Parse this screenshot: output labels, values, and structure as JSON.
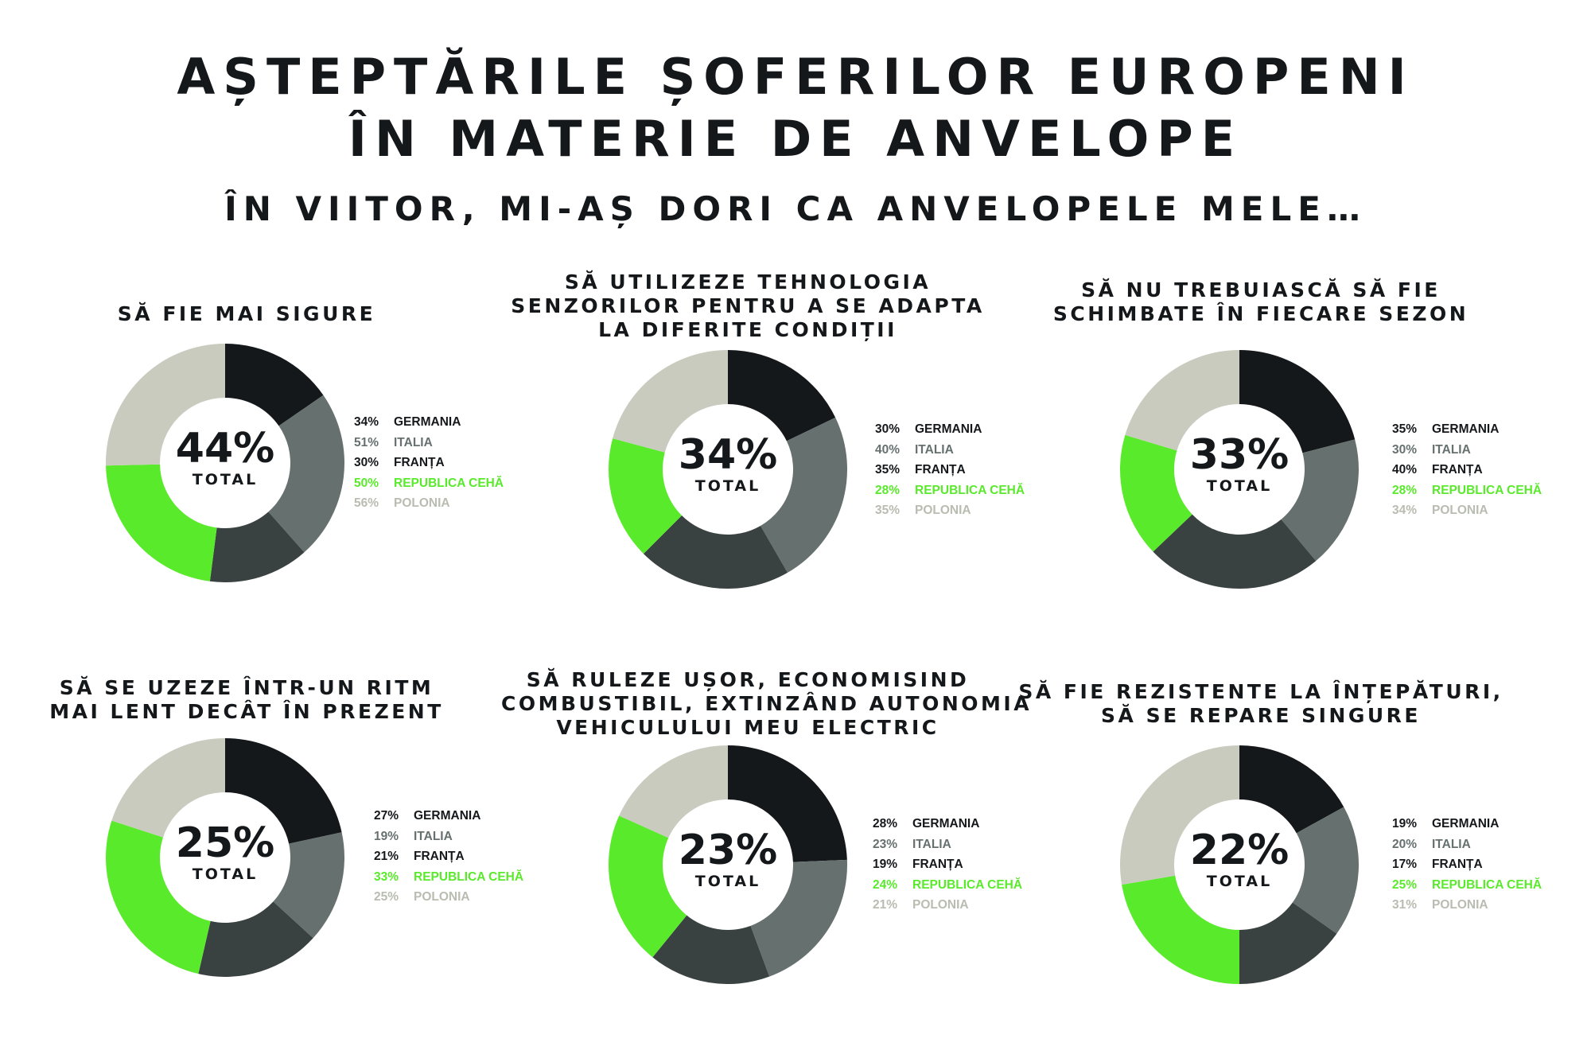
{
  "title_lines": [
    "AȘTEPTĂRILE ȘOFERILOR EUROPENI",
    "ÎN MATERIE DE ANVELOPE"
  ],
  "subtitle": "ÎN VIITOR, MI-AȘ DORI CA ANVELOPELE MELE…",
  "colors": {
    "GERMANIA": "#15181b",
    "ITALIA": "#66716f",
    "FRANȚA": "#3a4241",
    "REPUBLICA CEHĂ": "#5aea2c",
    "POLONIA": "#c8cbbe"
  },
  "chart_data": [
    {
      "type": "pie",
      "title": "SĂ FIE MAI SIGURE",
      "total": "44%",
      "total_label": "TOTAL",
      "categories": [
        "GERMANIA",
        "ITALIA",
        "FRANȚA",
        "REPUBLICA CEHĂ",
        "POLONIA"
      ],
      "values": [
        34,
        51,
        30,
        50,
        56
      ],
      "value_labels": [
        "34%",
        "51%",
        "30%",
        "50%",
        "56%"
      ]
    },
    {
      "type": "pie",
      "title": "SĂ UTILIZEZE TEHNOLOGIA SENZORILOR PENTRU A SE ADAPTA LA DIFERITE CONDIȚII",
      "total": "34%",
      "total_label": "TOTAL",
      "categories": [
        "GERMANIA",
        "ITALIA",
        "FRANȚA",
        "REPUBLICA CEHĂ",
        "POLONIA"
      ],
      "values": [
        30,
        40,
        35,
        28,
        35
      ],
      "value_labels": [
        "30%",
        "40%",
        "35%",
        "28%",
        "35%"
      ]
    },
    {
      "type": "pie",
      "title": "SĂ NU TREBUIASCĂ SĂ FIE SCHIMBATE ÎN FIECARE SEZON",
      "total": "33%",
      "total_label": "TOTAL",
      "categories": [
        "GERMANIA",
        "ITALIA",
        "FRANȚA",
        "REPUBLICA CEHĂ",
        "POLONIA"
      ],
      "values": [
        35,
        30,
        40,
        28,
        34
      ],
      "value_labels": [
        "35%",
        "30%",
        "40%",
        "28%",
        "34%"
      ]
    },
    {
      "type": "pie",
      "title": "SĂ SE UZEZE ÎNTR-UN RITM MAI LENT DECÂT ÎN PREZENT",
      "total": "25%",
      "total_label": "TOTAL",
      "categories": [
        "GERMANIA",
        "ITALIA",
        "FRANȚA",
        "REPUBLICA CEHĂ",
        "POLONIA"
      ],
      "values": [
        27,
        19,
        21,
        33,
        25
      ],
      "value_labels": [
        "27%",
        "19%",
        "21%",
        "33%",
        "25%"
      ]
    },
    {
      "type": "pie",
      "title": "SĂ RULEZE UȘOR, ECONOMISIND COMBUSTIBIL, EXTINZÂND AUTONOMIA VEHICULULUI MEU ELECTRIC",
      "total": "23%",
      "total_label": "TOTAL",
      "categories": [
        "GERMANIA",
        "ITALIA",
        "FRANȚA",
        "REPUBLICA CEHĂ",
        "POLONIA"
      ],
      "values": [
        28,
        23,
        19,
        24,
        21
      ],
      "value_labels": [
        "28%",
        "23%",
        "19%",
        "24%",
        "21%"
      ]
    },
    {
      "type": "pie",
      "title": "SĂ FIE REZISTENTE LA ÎNȚEPĂTURI, SĂ SE REPARE SINGURE",
      "total": "22%",
      "total_label": "TOTAL",
      "categories": [
        "GERMANIA",
        "ITALIA",
        "FRANȚA",
        "REPUBLICA CEHĂ",
        "POLONIA"
      ],
      "values": [
        19,
        20,
        17,
        25,
        31
      ],
      "value_labels": [
        "19%",
        "20%",
        "17%",
        "25%",
        "31%"
      ]
    }
  ]
}
